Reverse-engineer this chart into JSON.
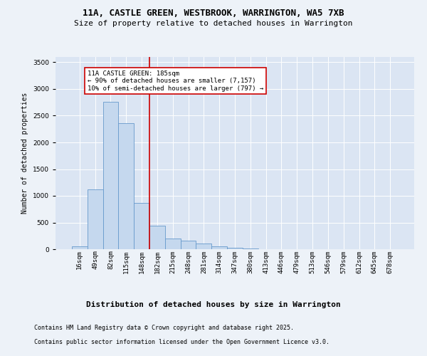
{
  "title_line1": "11A, CASTLE GREEN, WESTBROOK, WARRINGTON, WA5 7XB",
  "title_line2": "Size of property relative to detached houses in Warrington",
  "xlabel": "Distribution of detached houses by size in Warrington",
  "ylabel": "Number of detached properties",
  "categories": [
    "16sqm",
    "49sqm",
    "82sqm",
    "115sqm",
    "148sqm",
    "182sqm",
    "215sqm",
    "248sqm",
    "281sqm",
    "314sqm",
    "347sqm",
    "380sqm",
    "413sqm",
    "446sqm",
    "479sqm",
    "513sqm",
    "546sqm",
    "579sqm",
    "612sqm",
    "645sqm",
    "678sqm"
  ],
  "values": [
    60,
    1120,
    2760,
    2360,
    870,
    440,
    200,
    165,
    105,
    60,
    30,
    12,
    6,
    3,
    2,
    1,
    1,
    0,
    0,
    0,
    0
  ],
  "bar_color": "#c5d8ee",
  "bar_edge_color": "#6699cc",
  "vline_x_index": 5,
  "vline_color": "#cc0000",
  "annotation_title": "11A CASTLE GREEN: 185sqm",
  "annotation_line1": "← 90% of detached houses are smaller (7,157)",
  "annotation_line2": "10% of semi-detached houses are larger (797) →",
  "annotation_box_facecolor": "#ffffff",
  "annotation_box_edgecolor": "#cc0000",
  "ylim": [
    0,
    3600
  ],
  "yticks": [
    0,
    500,
    1000,
    1500,
    2000,
    2500,
    3000,
    3500
  ],
  "footer_line1": "Contains HM Land Registry data © Crown copyright and database right 2025.",
  "footer_line2": "Contains public sector information licensed under the Open Government Licence v3.0.",
  "background_color": "#edf2f8",
  "plot_background": "#dbe5f3",
  "grid_color": "#ffffff",
  "title1_fontsize": 9,
  "title2_fontsize": 8,
  "ylabel_fontsize": 7,
  "xlabel_fontsize": 8,
  "tick_fontsize": 6.5,
  "footer_fontsize": 6
}
